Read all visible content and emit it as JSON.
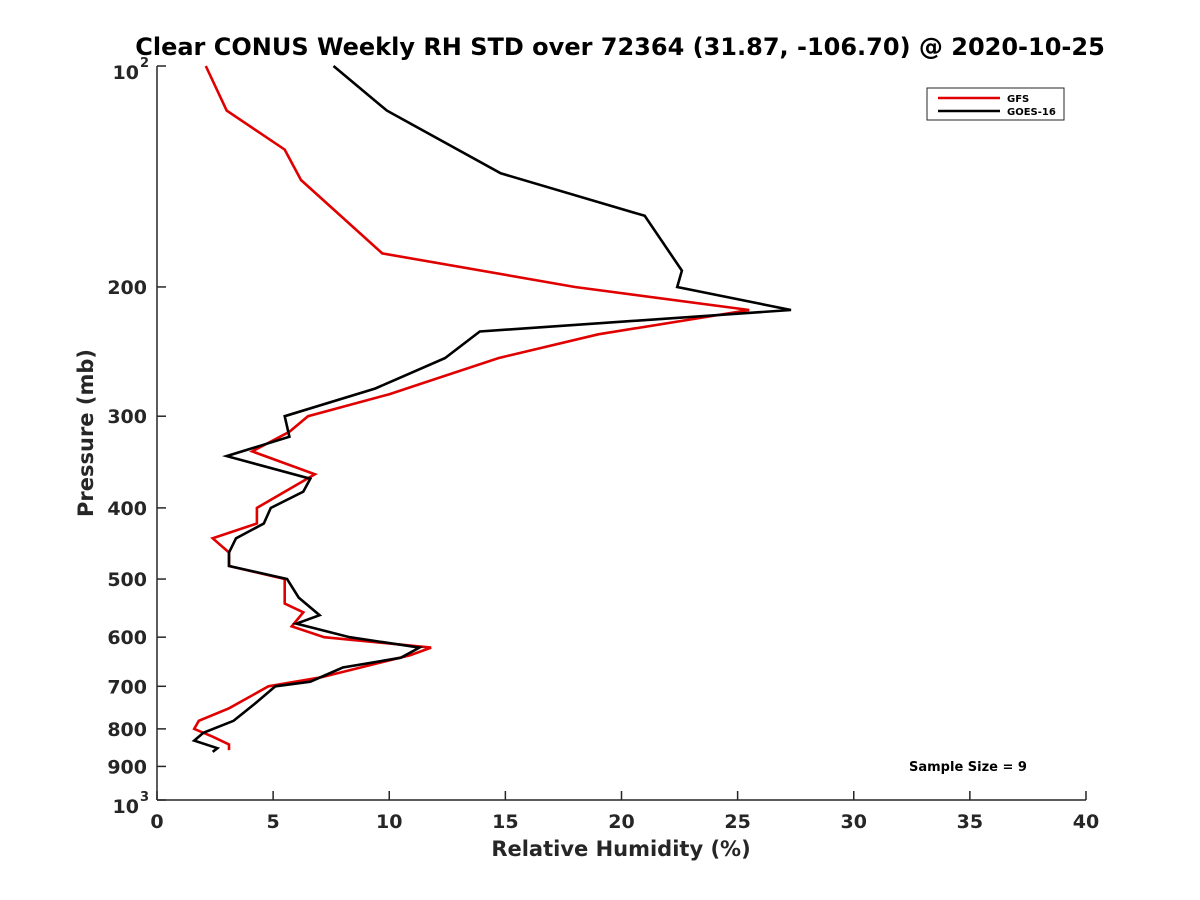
{
  "chart_data": {
    "type": "line",
    "title": "Clear CONUS Weekly RH STD over 72364 (31.87, -106.70) @ 2020-10-25",
    "xlabel": "Relative Humidity (%)",
    "ylabel": "Pressure (mb)",
    "xlim": [
      0,
      40
    ],
    "ylim": [
      100,
      1000
    ],
    "y_scale": "log",
    "y_reversed": true,
    "grid": false,
    "legend_position": "top-right",
    "x_ticks": [
      "0",
      "5",
      "10",
      "15",
      "20",
      "25",
      "30",
      "35",
      "40"
    ],
    "y_ticks": [
      {
        "value": 100,
        "label": "10",
        "exp": "2"
      },
      {
        "value": 200,
        "label": "200",
        "exp": ""
      },
      {
        "value": 300,
        "label": "300",
        "exp": ""
      },
      {
        "value": 400,
        "label": "400",
        "exp": ""
      },
      {
        "value": 500,
        "label": "500",
        "exp": ""
      },
      {
        "value": 600,
        "label": "600",
        "exp": ""
      },
      {
        "value": 700,
        "label": "700",
        "exp": ""
      },
      {
        "value": 800,
        "label": "800",
        "exp": ""
      },
      {
        "value": 900,
        "label": "900",
        "exp": ""
      },
      {
        "value": 1000,
        "label": "10",
        "exp": "3"
      }
    ],
    "annotation": "Sample Size = 9",
    "series": [
      {
        "name": "GFS",
        "color": "#e00000",
        "points": [
          [
            2.1,
            100
          ],
          [
            3.0,
            115
          ],
          [
            5.5,
            130
          ],
          [
            6.2,
            143
          ],
          [
            9.7,
            180
          ],
          [
            18.0,
            200
          ],
          [
            25.5,
            215
          ],
          [
            19.0,
            232
          ],
          [
            14.7,
            250
          ],
          [
            10.0,
            280
          ],
          [
            6.5,
            300
          ],
          [
            5.7,
            315
          ],
          [
            4.1,
            335
          ],
          [
            6.8,
            360
          ],
          [
            4.3,
            400
          ],
          [
            4.3,
            420
          ],
          [
            2.4,
            440
          ],
          [
            3.1,
            460
          ],
          [
            3.1,
            480
          ],
          [
            5.5,
            500
          ],
          [
            5.5,
            540
          ],
          [
            6.3,
            555
          ],
          [
            5.8,
            580
          ],
          [
            7.2,
            600
          ],
          [
            11.8,
            620
          ],
          [
            10.9,
            635
          ],
          [
            7.1,
            680
          ],
          [
            4.8,
            700
          ],
          [
            3.1,
            750
          ],
          [
            1.8,
            780
          ],
          [
            1.6,
            800
          ],
          [
            2.4,
            820
          ],
          [
            3.1,
            840
          ],
          [
            3.1,
            855
          ]
        ]
      },
      {
        "name": "GOES-16",
        "color": "#000000",
        "points": [
          [
            7.6,
            100
          ],
          [
            9.9,
            115
          ],
          [
            14.8,
            140
          ],
          [
            21.0,
            160
          ],
          [
            22.6,
            190
          ],
          [
            22.4,
            200
          ],
          [
            27.3,
            215
          ],
          [
            13.9,
            230
          ],
          [
            12.4,
            250
          ],
          [
            9.4,
            275
          ],
          [
            5.5,
            300
          ],
          [
            5.7,
            320
          ],
          [
            3.0,
            340
          ],
          [
            6.6,
            365
          ],
          [
            6.3,
            380
          ],
          [
            4.9,
            400
          ],
          [
            4.6,
            420
          ],
          [
            3.4,
            440
          ],
          [
            3.1,
            460
          ],
          [
            3.1,
            480
          ],
          [
            5.6,
            500
          ],
          [
            6.1,
            530
          ],
          [
            7.0,
            560
          ],
          [
            6.0,
            575
          ],
          [
            8.3,
            600
          ],
          [
            11.3,
            620
          ],
          [
            10.5,
            640
          ],
          [
            8.0,
            660
          ],
          [
            6.6,
            690
          ],
          [
            5.1,
            700
          ],
          [
            4.2,
            740
          ],
          [
            3.3,
            780
          ],
          [
            2.0,
            810
          ],
          [
            1.6,
            830
          ],
          [
            2.6,
            850
          ],
          [
            2.4,
            860
          ]
        ]
      }
    ]
  }
}
